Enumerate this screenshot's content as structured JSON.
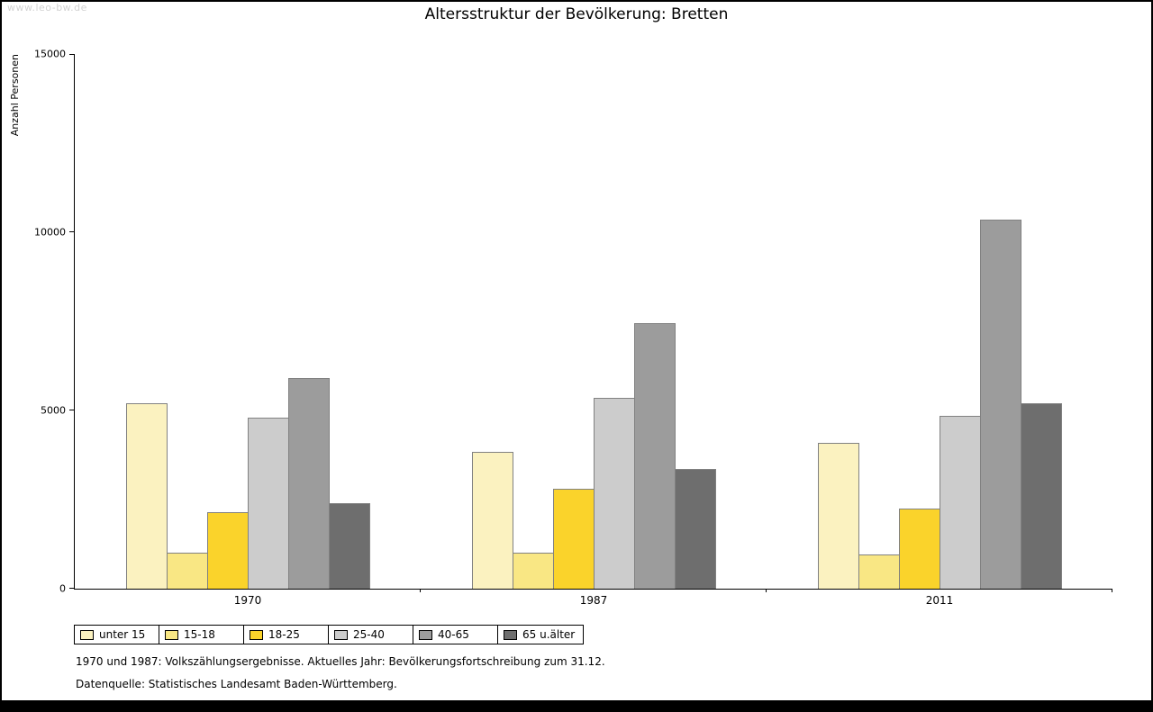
{
  "watermark": "www.leo-bw.de",
  "footnotes": {
    "line1": "1970 und 1987: Volkszählungsergebnisse. Aktuelles Jahr: Bevölkerungsfortschreibung zum 31.12.",
    "line2": "Datenquelle: Statistisches Landesamt Baden-Württemberg."
  },
  "chart_data": {
    "type": "bar",
    "title": "Altersstruktur der Bevölkerung: Bretten",
    "xlabel": "",
    "ylabel": "Anzahl Personen",
    "ylim": [
      0,
      15000
    ],
    "yticks": [
      0,
      5000,
      10000,
      15000
    ],
    "grid": false,
    "legend_position": "bottom-left",
    "categories": [
      "1970",
      "1987",
      "2011"
    ],
    "series": [
      {
        "name": "unter 15",
        "color": "#FBF2C0",
        "values": [
          5200,
          3850,
          4100
        ]
      },
      {
        "name": "15-18",
        "color": "#F9E784",
        "values": [
          1000,
          1000,
          950
        ]
      },
      {
        "name": "18-25",
        "color": "#FAD32B",
        "values": [
          2150,
          2800,
          2250
        ]
      },
      {
        "name": "25-40",
        "color": "#CCCCCC",
        "values": [
          4800,
          5350,
          4850
        ]
      },
      {
        "name": "40-65",
        "color": "#9C9C9C",
        "values": [
          5900,
          7450,
          10350
        ]
      },
      {
        "name": "65 u.älter",
        "color": "#6E6E6E",
        "values": [
          2400,
          3350,
          5200
        ]
      }
    ]
  }
}
